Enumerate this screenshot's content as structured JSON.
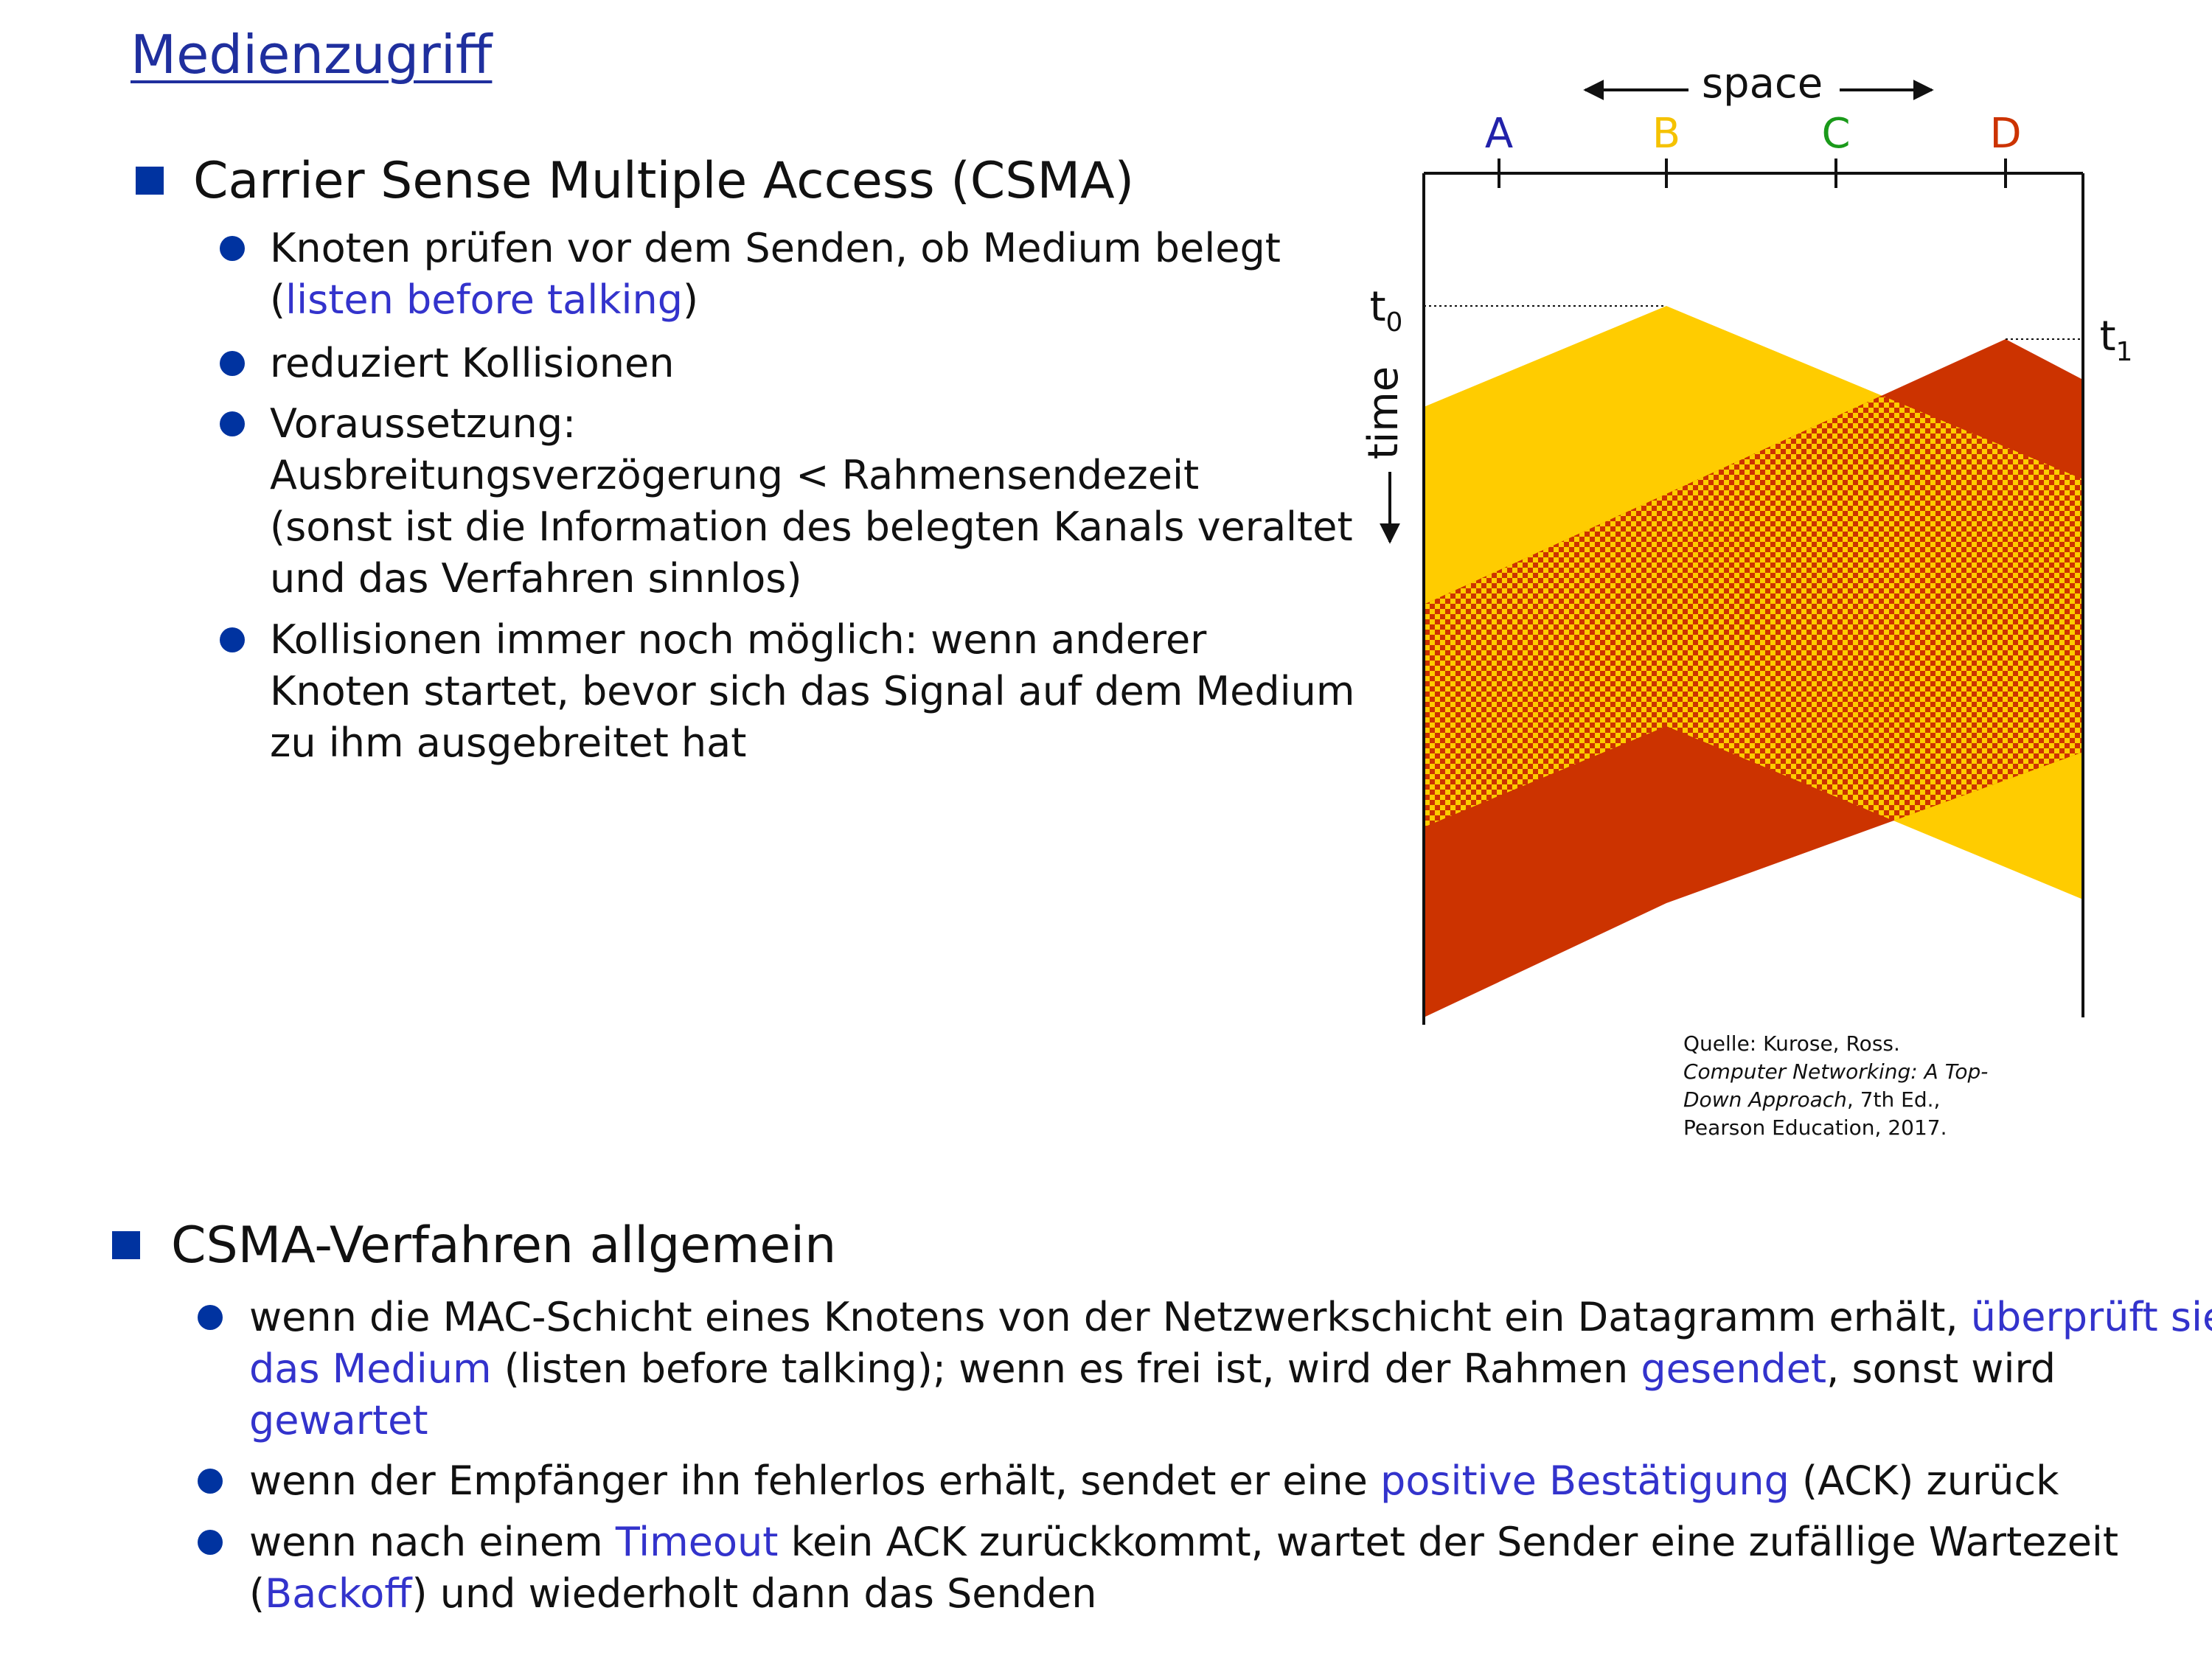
{
  "title": "Medienzugriff",
  "section1": {
    "heading": "Carrier Sense Multiple Access (CSMA)",
    "b1": {
      "l1": "Knoten prüfen vor dem Senden, ob Medium belegt",
      "l2_open": "(",
      "l2_link": "listen before talking",
      "l2_close": ")"
    },
    "b2": {
      "l1": "reduziert Kollisionen"
    },
    "b3": {
      "l1": "Voraussetzung:",
      "l2": "Ausbreitungsverzögerung < Rahmensendezeit",
      "l3": "(sonst ist die Information des belegten Kanals veraltet",
      "l4": "und das Verfahren sinnlos)"
    },
    "b4": {
      "l1": "Kollisionen immer noch möglich: wenn anderer",
      "l2": "Knoten startet, bevor sich das Signal auf dem Medium",
      "l3": "zu ihm ausgebreitet hat"
    }
  },
  "diagram": {
    "space_label": "space",
    "time_label": "time",
    "nodes": [
      {
        "label": "A",
        "color": "#2222aa"
      },
      {
        "label": "B",
        "color": "#f5c200"
      },
      {
        "label": "C",
        "color": "#1a9a1a"
      },
      {
        "label": "D",
        "color": "#cc3300"
      }
    ],
    "t0": {
      "base": "t",
      "sub": "0"
    },
    "t1": {
      "base": "t",
      "sub": "1"
    },
    "colors": {
      "yellow": "#ffcc00",
      "red": "#cc3300"
    }
  },
  "source": {
    "l1": "Quelle: Kurose, Ross.",
    "l2": "Computer Networking: A Top-",
    "l3_italic": "Down Approach",
    "l3_rest": ", 7th Ed.,",
    "l4": "Pearson Education, 2017."
  },
  "section2": {
    "heading": "CSMA-Verfahren allgemein",
    "b1": {
      "l1_a": "wenn die MAC-Schicht eines Knotens von der Netzwerkschicht ein Datagramm erhält, ",
      "l1_b": "überprüft sie",
      "l2_a": "das Medium",
      "l2_b": " (listen before talking); wenn es frei ist, wird der Rahmen ",
      "l2_c": "gesendet",
      "l2_d": ", sonst wird",
      "l3": "gewartet"
    },
    "b2": {
      "a": "wenn der Empfänger ihn fehlerlos erhält, sendet er eine ",
      "b": "positive Bestätigung",
      "c": " (ACK) zurück"
    },
    "b3": {
      "l1_a": "wenn nach einem ",
      "l1_b": "Timeout",
      "l1_c": " kein ACK zurückkommt, wartet der Sender eine zufällige Wartezeit",
      "l2_a": "(",
      "l2_b": "Backoff",
      "l2_c": ") und wiederholt dann das Senden"
    }
  }
}
